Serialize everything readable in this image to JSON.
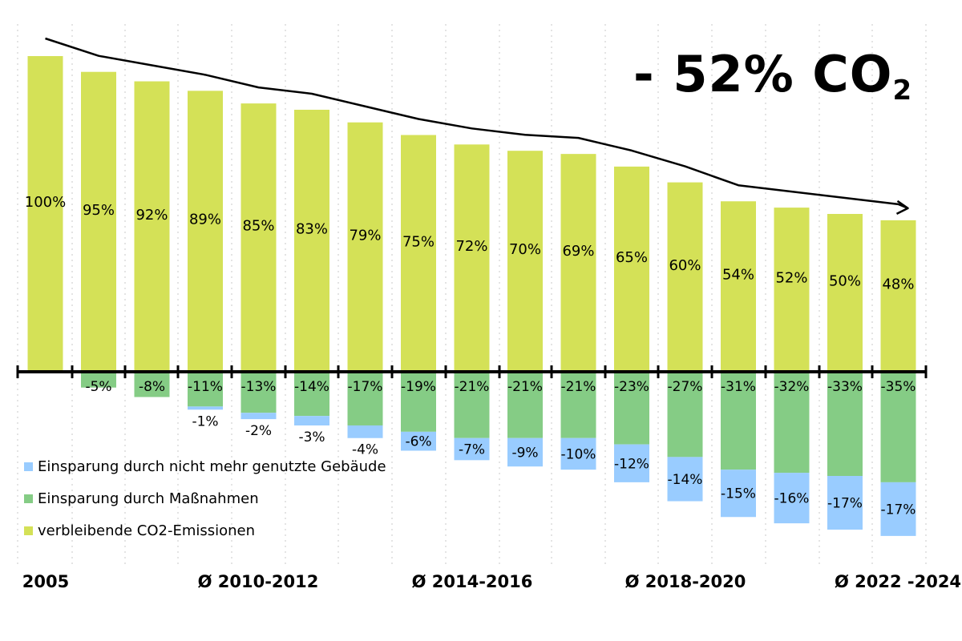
{
  "headline": {
    "prefix": "- 52% CO",
    "sub": "2"
  },
  "colors": {
    "remaining": "#d4e157",
    "measures": "#85cc85",
    "unused_buildings": "#99ccff",
    "axis": "#000000",
    "grid": "#c8c8c8"
  },
  "legend": [
    {
      "label": "Einsparung durch nicht mehr genutzte Gebäude",
      "color": "#99ccff"
    },
    {
      "label": "Einsparung durch Maßnahmen",
      "color": "#85cc85"
    },
    {
      "label": "verbleibende CO2-Emissionen",
      "color": "#d4e157"
    }
  ],
  "chart_data": {
    "type": "bar",
    "stacked": true,
    "x_labels": [
      "2005",
      "Ø 2010-2012",
      "Ø 2014-2016",
      "Ø 2018-2020",
      "Ø 2022 -2024"
    ],
    "series": [
      {
        "name": "verbleibende CO2-Emissionen",
        "values": [
          100,
          95,
          92,
          89,
          85,
          83,
          79,
          75,
          72,
          70,
          69,
          65,
          60,
          54,
          52,
          50,
          48
        ],
        "labels": [
          "100%",
          "95%",
          "92%",
          "89%",
          "85%",
          "83%",
          "79%",
          "75%",
          "72%",
          "70%",
          "69%",
          "65%",
          "60%",
          "54%",
          "52%",
          "50%",
          "48%"
        ]
      },
      {
        "name": "Einsparung durch Maßnahmen",
        "values": [
          0,
          -5,
          -8,
          -11,
          -13,
          -14,
          -17,
          -19,
          -21,
          -21,
          -21,
          -23,
          -27,
          -31,
          -32,
          -33,
          -35
        ],
        "labels": [
          "",
          "-5%",
          "-8%",
          "-11%",
          "-13%",
          "-14%",
          "-17%",
          "-19%",
          "-21%",
          "-21%",
          "-21%",
          "-23%",
          "-27%",
          "-31%",
          "-32%",
          "-33%",
          "-35%"
        ]
      },
      {
        "name": "Einsparung durch nicht mehr genutzte Gebäude",
        "values": [
          0,
          0,
          0,
          -1,
          -2,
          -3,
          -4,
          -6,
          -7,
          -9,
          -10,
          -12,
          -14,
          -15,
          -16,
          -17,
          -17
        ],
        "labels": [
          "",
          "",
          "",
          "-1%",
          "-2%",
          "-3%",
          "-4%",
          "-6%",
          "-7%",
          "-9%",
          "-10%",
          "-12%",
          "-14%",
          "-15%",
          "-16%",
          "-17%",
          "-17%"
        ]
      }
    ],
    "annotation": "- 52% CO2",
    "grid": "vertical dashed"
  }
}
